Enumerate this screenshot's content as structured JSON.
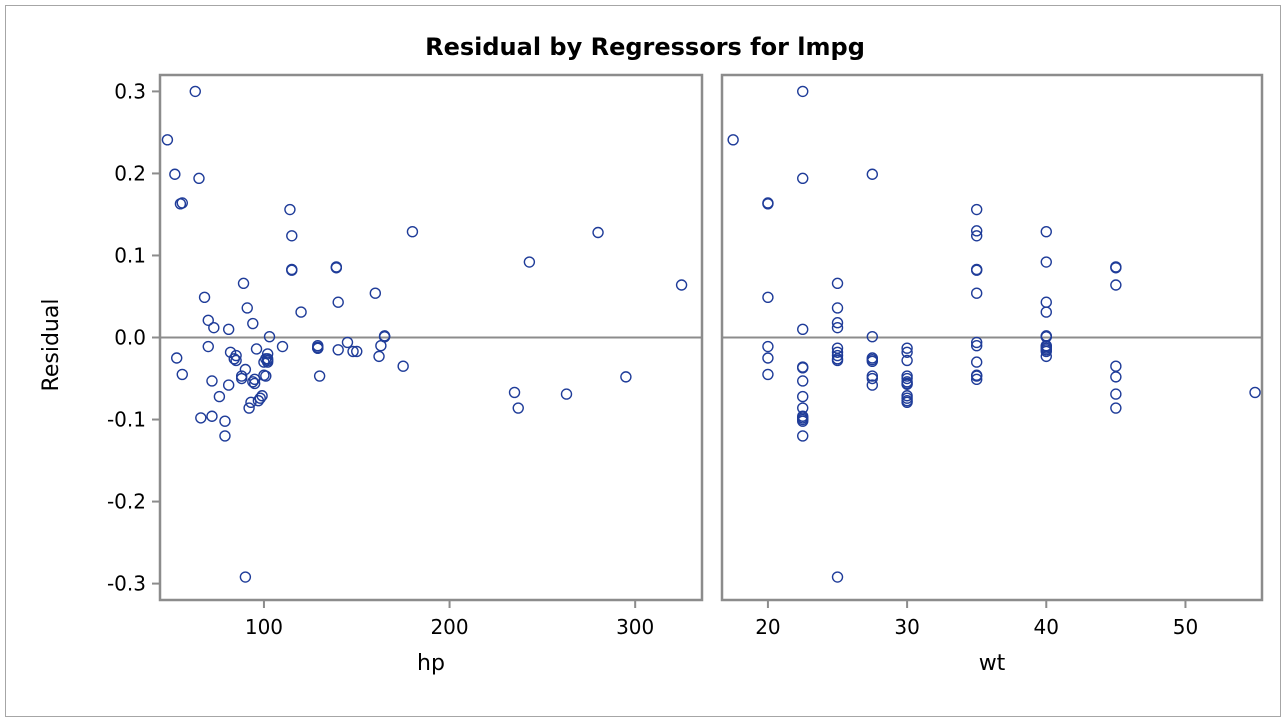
{
  "chart_data": {
    "type": "scatter",
    "title": "Residual by Regressors for lmpg",
    "ylabel": "Residual",
    "ylim": [
      -0.32,
      0.32
    ],
    "yticks": [
      0.3,
      0.2,
      0.1,
      0.0,
      -0.1,
      -0.2,
      -0.3
    ],
    "ytick_labels": [
      "0.3",
      "0.2",
      "0.1",
      "0.0",
      "-0.1",
      "-0.2",
      "-0.3"
    ],
    "reference_line_y": 0.0,
    "marker_color": "#1f3c99",
    "reference_color": "#8c8c8c",
    "panels": [
      {
        "xlabel": "hp",
        "xlim": [
          44,
          336
        ],
        "xticks": [
          100,
          200,
          300
        ],
        "xtick_labels": [
          "100",
          "200",
          "300"
        ],
        "x": [
          48,
          52,
          53,
          55,
          56,
          56,
          63,
          65,
          66,
          68,
          70,
          70,
          72,
          72,
          73,
          76,
          79,
          79,
          81,
          81,
          82,
          84,
          85,
          85,
          88,
          88,
          89,
          90,
          90,
          91,
          92,
          93,
          94,
          94,
          95,
          95,
          96,
          97,
          98,
          99,
          100,
          100,
          101,
          101,
          102,
          102,
          102,
          102,
          103,
          110,
          114,
          115,
          115,
          115,
          120,
          129,
          129,
          129,
          129,
          130,
          139,
          139,
          140,
          140,
          145,
          148,
          150,
          160,
          162,
          163,
          165,
          165,
          165,
          175,
          180,
          235,
          237,
          243,
          263,
          280,
          295,
          325
        ],
        "y": [
          0.241,
          0.199,
          -0.025,
          0.163,
          0.164,
          -0.045,
          0.3,
          0.194,
          -0.098,
          0.049,
          -0.011,
          0.021,
          -0.096,
          -0.053,
          0.012,
          -0.072,
          -0.102,
          -0.12,
          -0.058,
          0.01,
          -0.018,
          -0.026,
          -0.028,
          -0.022,
          -0.047,
          -0.05,
          0.066,
          -0.292,
          -0.039,
          0.036,
          -0.086,
          -0.079,
          0.017,
          -0.054,
          -0.056,
          -0.051,
          -0.014,
          -0.077,
          -0.074,
          -0.071,
          -0.046,
          -0.03,
          -0.026,
          -0.047,
          -0.02,
          -0.03,
          -0.026,
          -0.028,
          0.001,
          -0.011,
          0.156,
          0.124,
          0.083,
          0.082,
          0.031,
          -0.013,
          -0.01,
          -0.013,
          -0.012,
          -0.047,
          0.086,
          0.085,
          0.043,
          -0.015,
          -0.006,
          -0.017,
          -0.017,
          0.054,
          -0.023,
          -0.01,
          0.001,
          0.001,
          0.002,
          -0.035,
          0.129,
          -0.067,
          -0.086,
          0.092,
          -0.069,
          0.128,
          -0.048,
          0.064
        ]
      },
      {
        "xlabel": "wt",
        "xlim": [
          16.7,
          55.5
        ],
        "xticks": [
          20,
          30,
          40,
          50
        ],
        "xtick_labels": [
          "20",
          "30",
          "40",
          "50"
        ],
        "x": [
          17.5,
          20,
          20,
          20,
          20,
          20,
          20,
          22.5,
          22.5,
          22.5,
          22.5,
          22.5,
          22.5,
          22.5,
          22.5,
          22.5,
          22.5,
          22.5,
          22.5,
          22.5,
          25,
          25,
          25,
          25,
          25,
          25,
          25,
          25,
          25,
          25,
          27.5,
          27.5,
          27.5,
          27.5,
          27.5,
          27.5,
          27.5,
          27.5,
          30,
          30,
          30,
          30,
          30,
          30,
          30,
          30,
          30,
          30,
          30,
          30,
          35,
          35,
          35,
          35,
          35,
          35,
          35,
          35,
          35,
          35,
          35,
          35,
          40,
          40,
          40,
          40,
          40,
          40,
          40,
          40,
          40,
          40,
          40,
          40,
          40,
          40,
          45,
          45,
          45,
          45,
          45,
          45,
          45,
          55
        ],
        "y": [
          0.241,
          0.164,
          0.163,
          0.049,
          -0.011,
          -0.025,
          -0.045,
          0.3,
          0.194,
          0.01,
          -0.036,
          -0.037,
          -0.053,
          -0.072,
          -0.086,
          -0.096,
          -0.098,
          -0.102,
          -0.1,
          -0.12,
          0.066,
          0.036,
          0.018,
          0.012,
          -0.013,
          -0.018,
          -0.022,
          -0.026,
          -0.028,
          -0.292,
          0.199,
          0.001,
          -0.025,
          -0.027,
          -0.029,
          -0.047,
          -0.05,
          -0.058,
          -0.013,
          -0.018,
          -0.028,
          -0.047,
          -0.05,
          -0.054,
          -0.057,
          -0.056,
          -0.071,
          -0.074,
          -0.077,
          -0.079,
          0.156,
          0.13,
          0.124,
          0.083,
          0.082,
          0.054,
          -0.006,
          -0.01,
          -0.03,
          -0.046,
          -0.047,
          -0.051,
          0.129,
          0.092,
          0.043,
          0.031,
          0.001,
          0.001,
          0.002,
          0.001,
          -0.01,
          -0.011,
          -0.013,
          -0.015,
          -0.017,
          -0.023,
          0.086,
          0.085,
          0.064,
          -0.035,
          -0.048,
          -0.069,
          -0.086,
          -0.067
        ]
      }
    ]
  }
}
